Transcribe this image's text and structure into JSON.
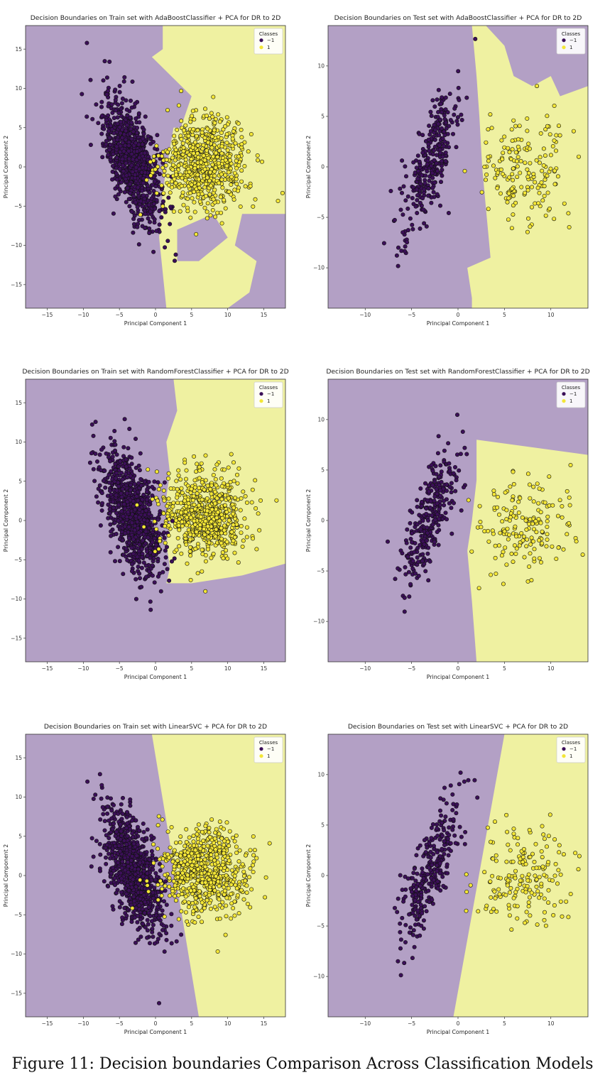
{
  "caption": "Figure 11: Decision boundaries Comparison Across Classification Models",
  "colors": {
    "purple_region": "#b3a0c5",
    "yellow_region": "#eff1a1",
    "class_neg": "#3b0f58",
    "class_pos": "#f3e637",
    "edge": "#111111",
    "frame": "#333333"
  },
  "chart_data": [
    {
      "type": "scatter",
      "title": "Decision Boundaries on Train set with AdaBoostClassifier + PCA for DR to 2D",
      "xlabel": "Principal Component 1",
      "ylabel": "Principal Component 2",
      "xlim": [
        -18,
        18
      ],
      "ylim": [
        -18,
        18
      ],
      "xticks": [
        -15,
        -10,
        -5,
        0,
        5,
        10,
        15
      ],
      "yticks": [
        -15,
        -10,
        -5,
        0,
        5,
        10,
        15
      ],
      "legend": {
        "title": "Classes",
        "entries": [
          "−1",
          "1"
        ],
        "position": "top-right"
      },
      "boundary_yellow": [
        [
          1.5,
          -18
        ],
        [
          0.5,
          -9
        ],
        [
          1,
          -3
        ],
        [
          2.5,
          5
        ],
        [
          3.5,
          5
        ],
        [
          5,
          9
        ],
        [
          -0.5,
          14
        ],
        [
          1,
          15
        ],
        [
          1,
          18
        ],
        [
          18,
          18
        ],
        [
          18,
          -18
        ]
      ],
      "boundary_purple_islands": [
        [
          [
            10,
            -18
          ],
          [
            18,
            -18
          ],
          [
            18,
            -6
          ],
          [
            12,
            -6
          ],
          [
            11,
            -10
          ],
          [
            14,
            -12
          ],
          [
            13,
            -16
          ]
        ],
        [
          [
            3,
            -8
          ],
          [
            8,
            -6
          ],
          [
            10,
            -9
          ],
          [
            6,
            -12
          ],
          [
            3,
            -12
          ]
        ]
      ],
      "clusters": [
        {
          "class": "-1",
          "n": 900,
          "cx": -3.2,
          "cy": 0.8,
          "sx": 2.0,
          "sy": 3.8,
          "rho": -0.55
        },
        {
          "class": "1",
          "n": 650,
          "cx": 6.8,
          "cy": 0.5,
          "sx": 3.0,
          "sy": 2.8,
          "rho": 0
        }
      ]
    },
    {
      "type": "scatter",
      "title": "Decision Boundaries on Test set with AdaBoostClassifier + PCA for DR to 2D",
      "xlabel": "Principal Component 1",
      "ylabel": "Principal Component 2",
      "xlim": [
        -14,
        14
      ],
      "ylim": [
        -14,
        14
      ],
      "xticks": [
        -10,
        -5,
        0,
        5,
        10
      ],
      "yticks": [
        -10,
        -5,
        0,
        5,
        10
      ],
      "legend": {
        "title": "Classes",
        "entries": [
          "−1",
          "1"
        ],
        "position": "top-right"
      },
      "boundary_yellow": [
        [
          1.5,
          14
        ],
        [
          2,
          9
        ],
        [
          2.3,
          5
        ],
        [
          2.6,
          0
        ],
        [
          3,
          -4
        ],
        [
          3.5,
          -9
        ],
        [
          1,
          -10
        ],
        [
          1.5,
          -13
        ],
        [
          1.5,
          -14
        ],
        [
          14,
          -14
        ],
        [
          14,
          14
        ]
      ],
      "boundary_purple_islands": [
        [
          [
            3,
            14
          ],
          [
            14,
            14
          ],
          [
            14,
            8
          ],
          [
            11,
            7
          ],
          [
            10,
            9
          ],
          [
            8,
            8
          ],
          [
            6,
            9
          ],
          [
            5,
            12
          ]
        ]
      ],
      "clusters": [
        {
          "class": "-1",
          "n": 300,
          "cx": -3,
          "cy": 0.5,
          "sx": 1.6,
          "sy": 3.6,
          "rho": 0.75
        },
        {
          "class": "1",
          "n": 170,
          "cx": 7,
          "cy": -0.5,
          "sx": 2.5,
          "sy": 2.6,
          "rho": 0
        }
      ]
    },
    {
      "type": "scatter",
      "title": "Decision Boundaries on Train set with RandomForestClassifier + PCA for DR to 2D",
      "xlabel": "Principal Component 1",
      "ylabel": "Principal Component 2",
      "xlim": [
        -18,
        18
      ],
      "ylim": [
        -18,
        18
      ],
      "xticks": [
        -15,
        -10,
        -5,
        0,
        5,
        10,
        15
      ],
      "yticks": [
        -15,
        -10,
        -5,
        0,
        5,
        10,
        15
      ],
      "legend": {
        "title": "Classes",
        "entries": [
          "−1",
          "1"
        ],
        "position": "top-right"
      },
      "boundary_yellow": [
        [
          2.5,
          18
        ],
        [
          3,
          14
        ],
        [
          1.5,
          10
        ],
        [
          2,
          6
        ],
        [
          1.5,
          3
        ],
        [
          2,
          0
        ],
        [
          1.5,
          -3
        ],
        [
          2,
          -6
        ],
        [
          1.5,
          -8
        ],
        [
          5,
          -8
        ],
        [
          12,
          -7
        ],
        [
          18,
          -5.5
        ],
        [
          18,
          18
        ]
      ],
      "boundary_purple_islands": [],
      "clusters": [
        {
          "class": "-1",
          "n": 900,
          "cx": -3.2,
          "cy": 0.8,
          "sx": 2.0,
          "sy": 3.8,
          "rho": -0.55
        },
        {
          "class": "1",
          "n": 650,
          "cx": 6.8,
          "cy": 0.5,
          "sx": 3.0,
          "sy": 2.8,
          "rho": 0
        }
      ]
    },
    {
      "type": "scatter",
      "title": "Decision Boundaries on Test set with RandomForestClassifier + PCA for DR to 2D",
      "xlabel": "Principal Component 1",
      "ylabel": "Principal Component 2",
      "xlim": [
        -14,
        14
      ],
      "ylim": [
        -14,
        14
      ],
      "xticks": [
        -10,
        -5,
        0,
        5,
        10
      ],
      "yticks": [
        -10,
        -5,
        0,
        5,
        10
      ],
      "legend": {
        "title": "Classes",
        "entries": [
          "−1",
          "1"
        ],
        "position": "top-right"
      },
      "boundary_yellow": [
        [
          2,
          8
        ],
        [
          14,
          6.5
        ],
        [
          14,
          -14
        ],
        [
          2,
          -14
        ],
        [
          1.5,
          -8
        ],
        [
          1,
          -3
        ],
        [
          1.5,
          0
        ],
        [
          2,
          4
        ]
      ],
      "boundary_purple_islands": [],
      "clusters": [
        {
          "class": "-1",
          "n": 300,
          "cx": -3,
          "cy": 0.5,
          "sx": 1.6,
          "sy": 3.6,
          "rho": 0.75
        },
        {
          "class": "1",
          "n": 170,
          "cx": 7,
          "cy": -0.5,
          "sx": 2.5,
          "sy": 2.6,
          "rho": 0
        }
      ]
    },
    {
      "type": "scatter",
      "title": "Decision Boundaries on Train set with LinearSVC + PCA for DR to 2D",
      "xlabel": "Principal Component 1",
      "ylabel": "Principal Component 2",
      "xlim": [
        -18,
        18
      ],
      "ylim": [
        -18,
        18
      ],
      "xticks": [
        -15,
        -10,
        -5,
        0,
        5,
        10,
        15
      ],
      "yticks": [
        -15,
        -10,
        -5,
        0,
        5,
        10,
        15
      ],
      "legend": {
        "title": "Classes",
        "entries": [
          "−1",
          "1"
        ],
        "position": "top-right"
      },
      "boundary_yellow": [
        [
          -0.5,
          18
        ],
        [
          18,
          18
        ],
        [
          18,
          -18
        ],
        [
          6,
          -18
        ]
      ],
      "boundary_purple_islands": [],
      "clusters": [
        {
          "class": "-1",
          "n": 900,
          "cx": -3.2,
          "cy": 0.8,
          "sx": 2.0,
          "sy": 3.8,
          "rho": -0.55
        },
        {
          "class": "1",
          "n": 650,
          "cx": 6.8,
          "cy": 0.5,
          "sx": 3.0,
          "sy": 2.8,
          "rho": 0
        }
      ]
    },
    {
      "type": "scatter",
      "title": "Decision Boundaries on Test set with LinearSVC + PCA for DR to 2D",
      "xlabel": "Principal Component 1",
      "ylabel": "Principal Component 2",
      "xlim": [
        -14,
        14
      ],
      "ylim": [
        -14,
        14
      ],
      "xticks": [
        -10,
        -5,
        0,
        5,
        10
      ],
      "yticks": [
        -10,
        -5,
        0,
        5,
        10
      ],
      "legend": {
        "title": "Classes",
        "entries": [
          "−1",
          "1"
        ],
        "position": "top-right"
      },
      "boundary_yellow": [
        [
          5,
          14
        ],
        [
          14,
          14
        ],
        [
          14,
          -14
        ],
        [
          -0.5,
          -14
        ]
      ],
      "boundary_purple_islands": [],
      "clusters": [
        {
          "class": "-1",
          "n": 300,
          "cx": -3,
          "cy": 0.5,
          "sx": 1.6,
          "sy": 3.6,
          "rho": 0.75
        },
        {
          "class": "1",
          "n": 170,
          "cx": 7,
          "cy": -0.5,
          "sx": 2.5,
          "sy": 2.6,
          "rho": 0
        }
      ]
    }
  ]
}
